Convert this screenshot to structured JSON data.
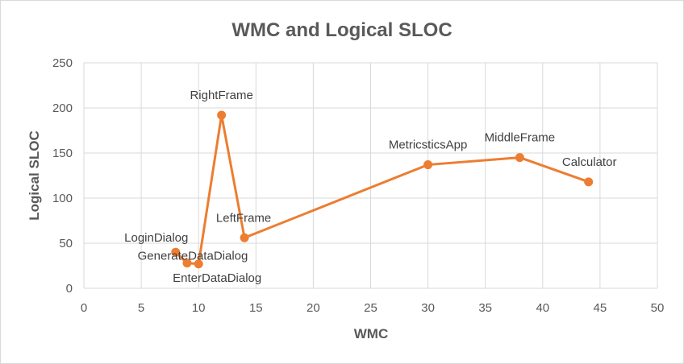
{
  "chart_data": {
    "type": "scatter",
    "title": "WMC and Logical SLOC",
    "xlabel": "WMC",
    "ylabel": "Logical SLOC",
    "xlim": [
      0,
      50
    ],
    "ylim": [
      0,
      250
    ],
    "xticks": [
      "0",
      "5",
      "10",
      "15",
      "20",
      "25",
      "30",
      "35",
      "40",
      "45",
      "50"
    ],
    "yticks": [
      "0",
      "50",
      "100",
      "150",
      "200",
      "250"
    ],
    "grid": true,
    "legend": "none",
    "series": [
      {
        "color": "#ed7d31",
        "points": [
          {
            "label": "LoginDialog",
            "x": 8,
            "y": 40
          },
          {
            "label": "GenerateDataDialog",
            "x": 9,
            "y": 28
          },
          {
            "label": "EnterDataDialog",
            "x": 10,
            "y": 27
          },
          {
            "label": "RightFrame",
            "x": 12,
            "y": 192
          },
          {
            "label": "LeftFrame",
            "x": 14,
            "y": 56
          },
          {
            "label": "MetricsticsApp",
            "x": 30,
            "y": 137
          },
          {
            "label": "MiddleFrame",
            "x": 38,
            "y": 145
          },
          {
            "label": "Calculator",
            "x": 44,
            "y": 118
          }
        ]
      }
    ]
  }
}
